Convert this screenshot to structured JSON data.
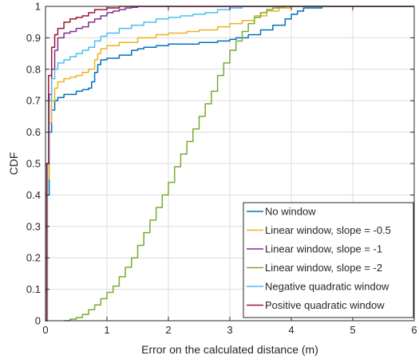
{
  "chart_data": {
    "type": "line",
    "title": "",
    "xlabel": "Error on the calculated distance (m)",
    "ylabel": "CDF",
    "xlim": [
      0,
      6
    ],
    "ylim": [
      0,
      1
    ],
    "xticks": [
      0,
      1,
      2,
      3,
      4,
      5,
      6
    ],
    "xtick_labels": [
      "0",
      "1",
      "2",
      "3",
      "4",
      "5",
      "6"
    ],
    "yticks": [
      0,
      0.1,
      0.2,
      0.3,
      0.4,
      0.5,
      0.6,
      0.7,
      0.8,
      0.9,
      1
    ],
    "ytick_labels": [
      "0",
      "0.1",
      "0.2",
      "0.3",
      "0.4",
      "0.5",
      "0.6",
      "0.7",
      "0.8",
      "0.9",
      "1"
    ],
    "grid": true,
    "legend_position": "bottom-right",
    "series": [
      {
        "name": "No window",
        "color": "#0072BD",
        "x": [
          0,
          0.03,
          0.06,
          0.1,
          0.15,
          0.2,
          0.3,
          0.4,
          0.5,
          0.6,
          0.7,
          0.75,
          0.8,
          0.85,
          0.9,
          1.0,
          1.2,
          1.4,
          1.5,
          1.6,
          1.8,
          2.0,
          2.2,
          2.5,
          2.8,
          3.0,
          3.1,
          3.3,
          3.5,
          3.7,
          3.9,
          4.0,
          4.1,
          4.2,
          4.5,
          5.0,
          5.6
        ],
        "values": [
          0,
          0.4,
          0.6,
          0.67,
          0.7,
          0.71,
          0.72,
          0.72,
          0.73,
          0.735,
          0.74,
          0.76,
          0.79,
          0.815,
          0.83,
          0.835,
          0.845,
          0.86,
          0.865,
          0.87,
          0.875,
          0.88,
          0.88,
          0.885,
          0.89,
          0.895,
          0.9,
          0.91,
          0.925,
          0.94,
          0.96,
          0.975,
          0.985,
          0.995,
          1,
          1,
          1
        ]
      },
      {
        "name": "Linear window, slope = -0.5",
        "color": "#EDB120",
        "x": [
          0,
          0.03,
          0.06,
          0.1,
          0.15,
          0.2,
          0.3,
          0.4,
          0.5,
          0.6,
          0.7,
          0.8,
          0.85,
          0.9,
          1.0,
          1.2,
          1.5,
          1.8,
          2.0,
          2.3,
          2.5,
          2.8,
          3.0,
          3.2,
          3.4,
          3.6,
          3.8,
          4.0,
          4.2
        ],
        "values": [
          0,
          0.45,
          0.63,
          0.7,
          0.74,
          0.76,
          0.77,
          0.775,
          0.78,
          0.79,
          0.8,
          0.83,
          0.85,
          0.865,
          0.875,
          0.885,
          0.9,
          0.91,
          0.915,
          0.92,
          0.925,
          0.935,
          0.945,
          0.955,
          0.97,
          0.985,
          0.995,
          1,
          1
        ]
      },
      {
        "name": "Linear window, slope = -1",
        "color": "#7E2F8E",
        "x": [
          0,
          0.03,
          0.06,
          0.1,
          0.15,
          0.2,
          0.3,
          0.4,
          0.5,
          0.6,
          0.7,
          0.8,
          0.9,
          1.0,
          1.1,
          1.2,
          1.3,
          1.4,
          1.5,
          1.6,
          1.8,
          2.0
        ],
        "values": [
          0,
          0.5,
          0.72,
          0.8,
          0.86,
          0.9,
          0.915,
          0.92,
          0.93,
          0.935,
          0.95,
          0.96,
          0.97,
          0.98,
          0.985,
          0.99,
          0.995,
          0.997,
          1,
          1,
          1,
          1
        ]
      },
      {
        "name": "Linear window, slope = -2",
        "color": "#77AC30",
        "x": [
          0.3,
          0.4,
          0.5,
          0.6,
          0.7,
          0.8,
          0.9,
          1.0,
          1.1,
          1.2,
          1.3,
          1.4,
          1.5,
          1.6,
          1.7,
          1.8,
          1.9,
          2.0,
          2.1,
          2.2,
          2.3,
          2.4,
          2.5,
          2.6,
          2.7,
          2.8,
          2.9,
          3.0,
          3.1,
          3.2,
          3.3,
          3.4,
          3.5,
          3.6,
          3.7,
          3.8,
          3.9,
          4.0,
          4.1,
          4.2
        ],
        "values": [
          0,
          0.005,
          0.01,
          0.02,
          0.035,
          0.05,
          0.07,
          0.09,
          0.11,
          0.14,
          0.17,
          0.2,
          0.24,
          0.28,
          0.32,
          0.36,
          0.4,
          0.44,
          0.49,
          0.53,
          0.57,
          0.61,
          0.65,
          0.69,
          0.73,
          0.78,
          0.82,
          0.86,
          0.89,
          0.92,
          0.945,
          0.965,
          0.98,
          0.99,
          0.995,
          0.998,
          1,
          1,
          1,
          1
        ]
      },
      {
        "name": "Negative quadratic window",
        "color": "#4DBEEE",
        "x": [
          0,
          0.03,
          0.06,
          0.1,
          0.15,
          0.2,
          0.3,
          0.4,
          0.5,
          0.6,
          0.7,
          0.8,
          0.9,
          1.0,
          1.2,
          1.4,
          1.6,
          1.8,
          2.0,
          2.2,
          2.4,
          2.6,
          2.8,
          3.0,
          3.2,
          3.4,
          3.6
        ],
        "values": [
          0,
          0.5,
          0.7,
          0.77,
          0.8,
          0.82,
          0.83,
          0.84,
          0.85,
          0.86,
          0.87,
          0.89,
          0.905,
          0.915,
          0.93,
          0.94,
          0.95,
          0.96,
          0.965,
          0.97,
          0.975,
          0.98,
          0.99,
          0.995,
          1,
          1,
          1
        ]
      },
      {
        "name": "Positive quadratic window",
        "color": "#A2142F",
        "x": [
          0,
          0.02,
          0.05,
          0.1,
          0.15,
          0.2,
          0.3,
          0.4,
          0.5,
          0.6,
          0.7,
          0.8,
          0.9,
          1.0,
          1.1,
          1.2,
          1.3,
          1.4,
          1.5,
          1.6,
          1.8,
          2.0
        ],
        "values": [
          0,
          0.5,
          0.78,
          0.87,
          0.91,
          0.93,
          0.95,
          0.96,
          0.965,
          0.97,
          0.98,
          0.99,
          0.99,
          0.995,
          0.995,
          1,
          1,
          1,
          1,
          1,
          1,
          1
        ]
      }
    ]
  }
}
